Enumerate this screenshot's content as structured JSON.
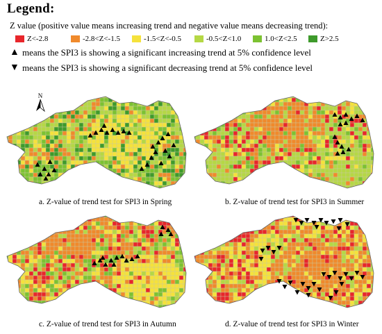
{
  "legend": {
    "title": "Legend:",
    "description": "Z value (positive value means increasing trend and negative value means decreasing trend):",
    "classes": [
      {
        "label": "Z<-2.8",
        "color": "#e8262b"
      },
      {
        "label": "-2.8<Z<-1.5",
        "color": "#f08a2c"
      },
      {
        "label": "-1.5<Z<-0.5",
        "color": "#f5e23c"
      },
      {
        "label": "-0.5<Z<1.0",
        "color": "#b5d845"
      },
      {
        "label": "1.0<Z<2.5",
        "color": "#7cc232"
      },
      {
        "label": "Z>2.5",
        "color": "#3e9a2b"
      }
    ],
    "increasing_glyph": "▲",
    "decreasing_glyph": "▼",
    "increasing_text": "means the SPI3 is showing a significant increasing trend at 5% confidence level",
    "decreasing_text": "means the SPI3 is showing a significant decreasing trend at 5% confidence level"
  },
  "north_arrow": {
    "label": "N"
  },
  "panels": [
    {
      "id": "spring",
      "caption": "a.   Z-value of trend test for SPI3 in Spring",
      "trend": "increasing",
      "palette": [
        "#7cc232",
        "#b5d845",
        "#b5d845",
        "#f5e23c",
        "#f08a2c",
        "#3e9a2b"
      ]
    },
    {
      "id": "summer",
      "caption": "b.   Z-value of trend test for SPI3 in Summer",
      "trend": "increasing",
      "palette": [
        "#b5d845",
        "#7cc232",
        "#f5e23c",
        "#f08a2c",
        "#b5d845",
        "#e8262b"
      ]
    },
    {
      "id": "autumn",
      "caption": "c.   Z-value of trend test for SPI3 in Autumn",
      "trend": "increasing",
      "palette": [
        "#f5e23c",
        "#b5d845",
        "#f08a2c",
        "#f08a2c",
        "#7cc232",
        "#e8262b"
      ]
    },
    {
      "id": "winter",
      "caption": "d.   Z-value of trend test for SPI3 in Winter",
      "trend": "decreasing",
      "palette": [
        "#f08a2c",
        "#f5e23c",
        "#f08a2c",
        "#e8262b",
        "#b5d845",
        "#f5e23c"
      ]
    }
  ]
}
